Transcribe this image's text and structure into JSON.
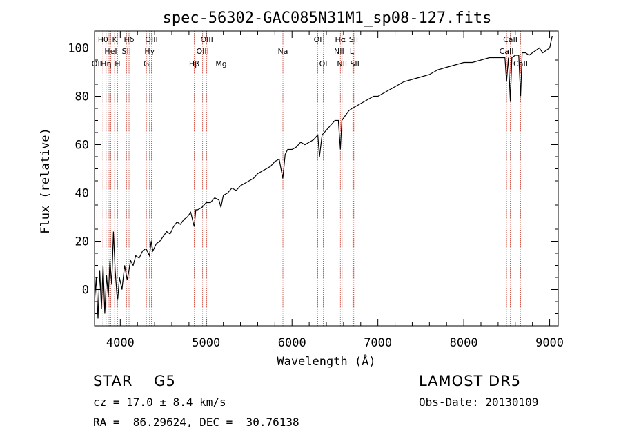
{
  "chart_data": {
    "type": "line",
    "title": "spec-56302-GAC085N31M1_sp08-127.fits",
    "xlabel": "Wavelength (Å)",
    "ylabel": "Flux (relative)",
    "xlim": [
      3700,
      9100
    ],
    "ylim": [
      -15,
      107
    ],
    "x_ticks": [
      4000,
      5000,
      6000,
      7000,
      8000,
      9000
    ],
    "y_ticks": [
      0,
      20,
      40,
      60,
      80,
      100
    ],
    "grid": false,
    "line_color": "#000000",
    "series": [
      {
        "x": [
          3700,
          3720,
          3740,
          3760,
          3780,
          3800,
          3820,
          3840,
          3860,
          3880,
          3900,
          3920,
          3940,
          3960,
          3970,
          3990,
          4020,
          4050,
          4080,
          4101,
          4120,
          4150,
          4180,
          4220,
          4260,
          4300,
          4340,
          4360,
          4380,
          4420,
          4460,
          4500,
          4540,
          4580,
          4620,
          4660,
          4700,
          4740,
          4780,
          4820,
          4861,
          4880,
          4900,
          4950,
          5000,
          5050,
          5100,
          5150,
          5172,
          5200,
          5250,
          5300,
          5350,
          5400,
          5450,
          5500,
          5550,
          5600,
          5650,
          5700,
          5750,
          5800,
          5850,
          5893,
          5920,
          5950,
          6000,
          6050,
          6100,
          6150,
          6200,
          6250,
          6300,
          6320,
          6350,
          6400,
          6450,
          6500,
          6540,
          6563,
          6580,
          6620,
          6660,
          6700,
          6750,
          6800,
          6850,
          6900,
          6950,
          7000,
          7100,
          7200,
          7300,
          7400,
          7500,
          7600,
          7700,
          7800,
          7900,
          8000,
          8100,
          8200,
          8300,
          8400,
          8480,
          8498,
          8520,
          8542,
          8560,
          8600,
          8640,
          8662,
          8680,
          8720,
          8760,
          8800,
          8840,
          8880,
          8920,
          8960,
          9000,
          9030
        ],
        "y": [
          -5,
          5,
          -12,
          8,
          -8,
          10,
          -10,
          6,
          -3,
          12,
          2,
          24,
          8,
          -2,
          -4,
          5,
          0,
          10,
          4,
          8,
          12,
          10,
          14,
          13,
          16,
          17,
          14,
          20,
          16,
          19,
          20,
          22,
          24,
          23,
          26,
          28,
          27,
          29,
          30,
          32,
          26,
          33,
          33,
          34,
          36,
          36,
          38,
          37,
          34,
          39,
          40,
          42,
          41,
          43,
          44,
          45,
          46,
          48,
          49,
          50,
          51,
          53,
          54,
          46,
          56,
          58,
          58,
          59,
          61,
          60,
          61,
          62,
          64,
          55,
          64,
          66,
          68,
          70,
          70,
          58,
          70,
          72,
          74,
          75,
          76,
          77,
          78,
          79,
          80,
          80,
          82,
          84,
          86,
          87,
          88,
          89,
          91,
          92,
          93,
          94,
          94,
          95,
          96,
          96,
          96,
          86,
          96,
          78,
          96,
          97,
          97,
          80,
          98,
          98,
          97,
          98,
          99,
          100,
          98,
          99,
          100,
          105
        ]
      }
    ],
    "line_marks": [
      {
        "wl": 3727,
        "label": "OII",
        "row": 3
      },
      {
        "wl": 3798,
        "label": "Hθ",
        "row": 1
      },
      {
        "wl": 3835,
        "label": "Hη",
        "row": 3
      },
      {
        "wl": 3869,
        "label": "",
        "row": 0
      },
      {
        "wl": 3889,
        "label": "HeI",
        "row": 2
      },
      {
        "wl": 3934,
        "label": "K",
        "row": 1
      },
      {
        "wl": 3968,
        "label": "H",
        "row": 3
      },
      {
        "wl": 4072,
        "label": "SII",
        "row": 2
      },
      {
        "wl": 4102,
        "label": "Hδ",
        "row": 1
      },
      {
        "wl": 4304,
        "label": "G",
        "row": 3
      },
      {
        "wl": 4341,
        "label": "Hγ",
        "row": 2
      },
      {
        "wl": 4363,
        "label": "OIII",
        "row": 1
      },
      {
        "wl": 4861,
        "label": "Hβ",
        "row": 3
      },
      {
        "wl": 4959,
        "label": "OIII",
        "row": 2
      },
      {
        "wl": 5007,
        "label": "OIII",
        "row": 1
      },
      {
        "wl": 5175,
        "label": "Mg",
        "row": 3
      },
      {
        "wl": 5894,
        "label": "Na",
        "row": 2
      },
      {
        "wl": 6300,
        "label": "OI",
        "row": 1
      },
      {
        "wl": 6364,
        "label": "OI",
        "row": 3
      },
      {
        "wl": 6548,
        "label": "NII",
        "row": 2
      },
      {
        "wl": 6563,
        "label": "Hα",
        "row": 1
      },
      {
        "wl": 6583,
        "label": "NII",
        "row": 3
      },
      {
        "wl": 6708,
        "label": "Li",
        "row": 2
      },
      {
        "wl": 6717,
        "label": "SII",
        "row": 1
      },
      {
        "wl": 6731,
        "label": "SII",
        "row": 3
      },
      {
        "wl": 8498,
        "label": "CaII",
        "row": 2
      },
      {
        "wl": 8542,
        "label": "CaII",
        "row": 1
      },
      {
        "wl": 8662,
        "label": "CaII",
        "row": 3
      }
    ],
    "line_mark_color": "#c0392b"
  },
  "footer": {
    "star": "STAR    G5",
    "survey": "LAMOST DR5",
    "cz": "cz = 17.0 ± 8.4 km/s",
    "obs_date": "Obs-Date: 20130109",
    "radec": "RA =  86.29624, DEC =  30.76138"
  }
}
